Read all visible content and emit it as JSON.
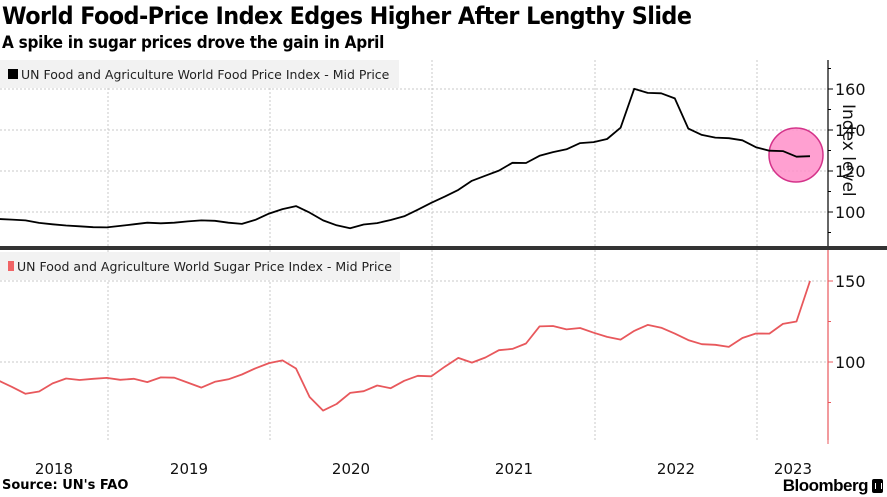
{
  "header": {
    "title": "World Food-Price Index Edges Higher After Lengthy Slide",
    "subtitle": "A spike in sugar prices drove the gain in April"
  },
  "footer": {
    "source": "Source: UN's FAO",
    "brand": "Bloomberg",
    "brand_icon": "bloomberg-terminal-icon"
  },
  "colors": {
    "food_line": "#000000",
    "sugar_line": "#e8585c",
    "highlight_fill": "#ff8fc9",
    "highlight_stroke": "#d4338a",
    "grid": "#c8c8c8",
    "panel_divider": "#333333"
  },
  "chart_data": [
    {
      "type": "line",
      "panel": "top",
      "title": "World Food-Price Index Edges Higher After Lengthy Slide",
      "subtitle": "A spike in sugar prices drove the gain in April",
      "legend": "UN Food and Agriculture World Food Price Index - Mid Price",
      "legend_position": "top-left",
      "ylabel": "Index level",
      "yticks": [
        100,
        120,
        140,
        160
      ],
      "ylim": [
        86,
        175
      ],
      "grid": true,
      "x_start": "2018-01",
      "x_frequency": "monthly",
      "xticks": [
        "2018",
        "2019",
        "2020",
        "2021",
        "2022",
        "2023"
      ],
      "highlight": {
        "description": "pink circle marking latest readings",
        "x_from": "2023-01",
        "x_to": "2023-04"
      },
      "series": [
        {
          "name": "UN Food and Agriculture World Food Price Index - Mid Price",
          "values": [
            98.5,
            98.6,
            97.7,
            96.6,
            96.3,
            95.9,
            94.7,
            94.0,
            93.4,
            93.0,
            92.6,
            92.5,
            93.2,
            94.0,
            94.8,
            94.5,
            94.8,
            95.4,
            95.9,
            95.7,
            94.8,
            94.2,
            96.2,
            99.2,
            101.4,
            102.9,
            99.7,
            95.9,
            93.5,
            92.1,
            93.9,
            94.6,
            96.1,
            97.9,
            101.1,
            104.5,
            107.5,
            110.8,
            115.2,
            117.7,
            120.2,
            124.0,
            123.9,
            127.4,
            129.2,
            130.6,
            133.6,
            134.1,
            135.6,
            141.1,
            160.1,
            158.1,
            157.9,
            155.4,
            140.7,
            137.6,
            136.3,
            136.0,
            135.0,
            131.6,
            129.9,
            129.7,
            127.0,
            127.2
          ]
        }
      ]
    },
    {
      "type": "line",
      "panel": "bottom",
      "legend": "UN Food and Agriculture World Sugar Price Index - Mid Price",
      "legend_position": "top-left",
      "ylabel": "",
      "yticks": [
        100,
        150
      ],
      "ylim": [
        70,
        170
      ],
      "grid": true,
      "x_start": "2018-01",
      "x_frequency": "monthly",
      "xticks": [
        "2018",
        "2019",
        "2020",
        "2021",
        "2022",
        "2023"
      ],
      "series": [
        {
          "name": "UN Food and Agriculture World Sugar Price Index - Mid Price",
          "values": [
            87.8,
            87.8,
            88.5,
            84.6,
            80.4,
            81.8,
            86.8,
            89.8,
            88.9,
            89.6,
            90.2,
            89.0,
            89.6,
            87.6,
            90.5,
            90.3,
            87.3,
            84.2,
            87.8,
            89.3,
            92.3,
            96.1,
            99.3,
            101.0,
            96.0,
            78.4,
            70.0,
            74.1,
            80.9,
            82.0,
            85.5,
            83.8,
            88.4,
            91.5,
            91.2,
            97.1,
            102.5,
            99.6,
            102.8,
            107.3,
            108.1,
            111.4,
            122.0,
            122.2,
            120.1,
            121.0,
            118.1,
            115.5,
            113.8,
            119.2,
            122.9,
            121.2,
            117.5,
            113.5,
            111.0,
            110.6,
            109.3,
            114.8,
            117.6,
            117.5,
            123.5,
            125.0,
            150.0
          ]
        }
      ]
    }
  ]
}
